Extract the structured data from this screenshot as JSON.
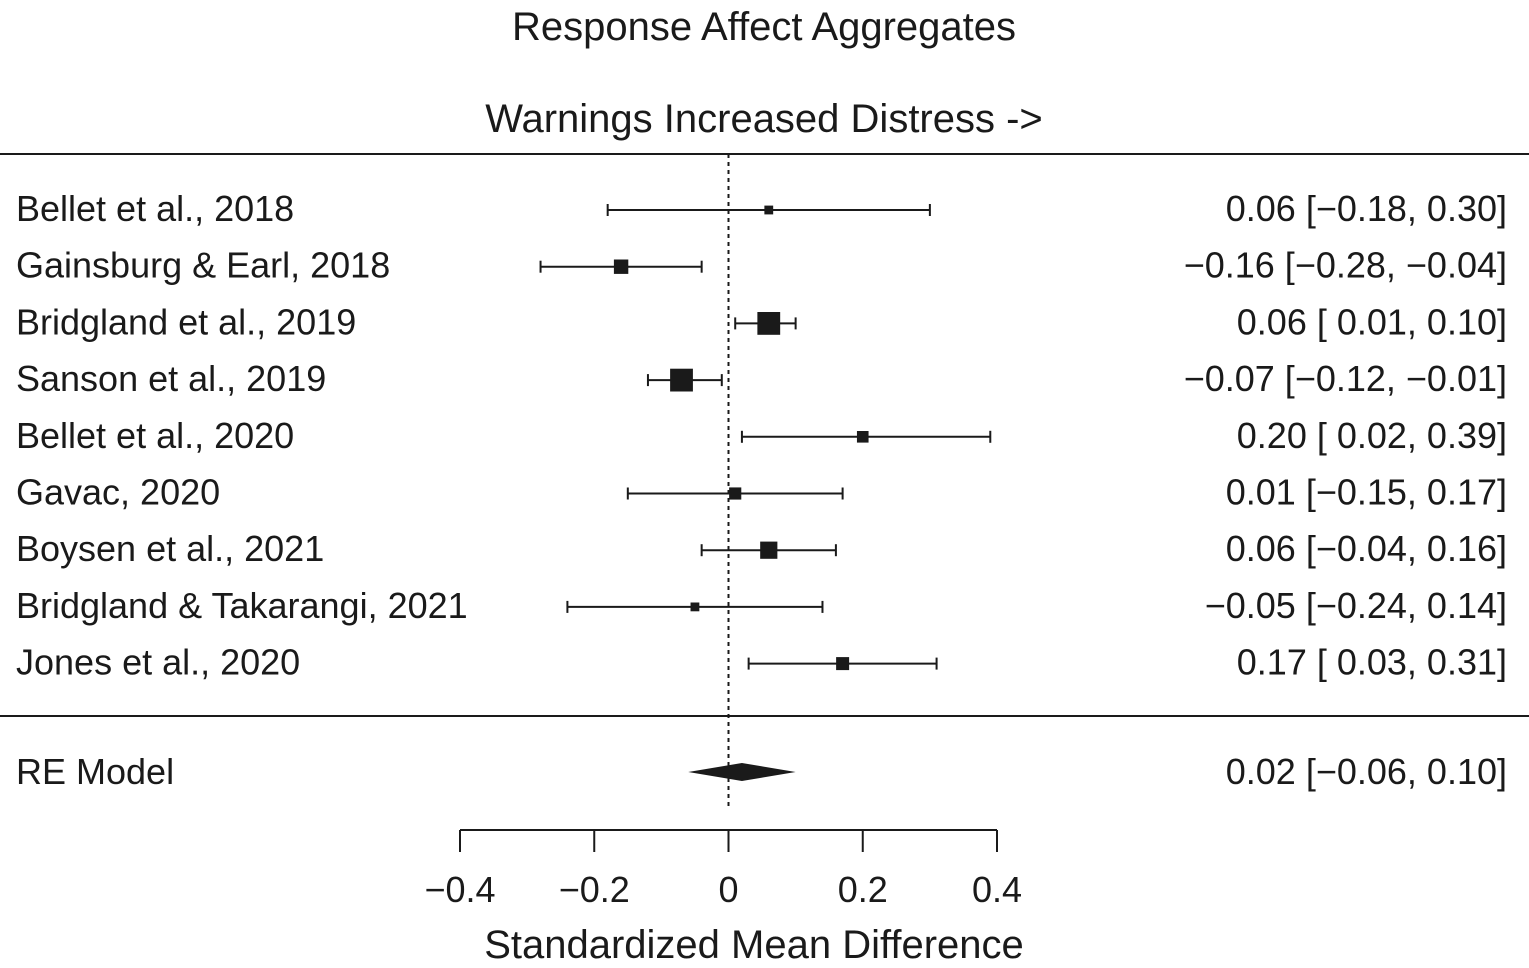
{
  "chart_data": {
    "type": "forest",
    "title": "Response Affect Aggregates",
    "subtitle": "Warnings Increased Distress ->",
    "xlabel": "Standardized Mean Difference",
    "xlim": [
      -0.4,
      0.4
    ],
    "xticks": [
      -0.4,
      -0.2,
      0,
      0.2,
      0.4
    ],
    "xtick_labels": [
      "−0.4",
      "−0.2",
      "0",
      "0.2",
      "0.4"
    ],
    "reference_line": 0,
    "studies": [
      {
        "label": "Bellet et al., 2018",
        "estimate": 0.06,
        "lower": -0.18,
        "upper": 0.3,
        "weight": 1,
        "text": "0.06 [−0.18, 0.30]"
      },
      {
        "label": "Gainsburg & Earl, 2018",
        "estimate": -0.16,
        "lower": -0.28,
        "upper": -0.04,
        "weight": 3,
        "text": "−0.16 [−0.28, −0.04]"
      },
      {
        "label": "Bridgland et al., 2019",
        "estimate": 0.06,
        "lower": 0.01,
        "upper": 0.1,
        "weight": 6,
        "text": "0.06 [ 0.01, 0.10]"
      },
      {
        "label": "Sanson et al., 2019",
        "estimate": -0.07,
        "lower": -0.12,
        "upper": -0.01,
        "weight": 6,
        "text": "−0.07 [−0.12, −0.01]"
      },
      {
        "label": "Bellet et al., 2020",
        "estimate": 0.2,
        "lower": 0.02,
        "upper": 0.39,
        "weight": 2,
        "text": "0.20 [ 0.02, 0.39]"
      },
      {
        "label": "Gavac, 2020",
        "estimate": 0.01,
        "lower": -0.15,
        "upper": 0.17,
        "weight": 2.2,
        "text": "0.01 [−0.15, 0.17]"
      },
      {
        "label": "Boysen et al., 2021",
        "estimate": 0.06,
        "lower": -0.04,
        "upper": 0.16,
        "weight": 4,
        "text": "0.06 [−0.04, 0.16]"
      },
      {
        "label": "Bridgland & Takarangi, 2021",
        "estimate": -0.05,
        "lower": -0.24,
        "upper": 0.14,
        "weight": 1,
        "text": "−0.05 [−0.24, 0.14]"
      },
      {
        "label": "Jones et al., 2020",
        "estimate": 0.17,
        "lower": 0.03,
        "upper": 0.31,
        "weight": 2.5,
        "text": "0.17 [ 0.03, 0.31]"
      }
    ],
    "summary": {
      "label": "RE Model",
      "estimate": 0.02,
      "lower": -0.06,
      "upper": 0.1,
      "text": "0.02 [−0.06, 0.10]"
    },
    "colors": {
      "ink": "#1a1a1a"
    }
  }
}
